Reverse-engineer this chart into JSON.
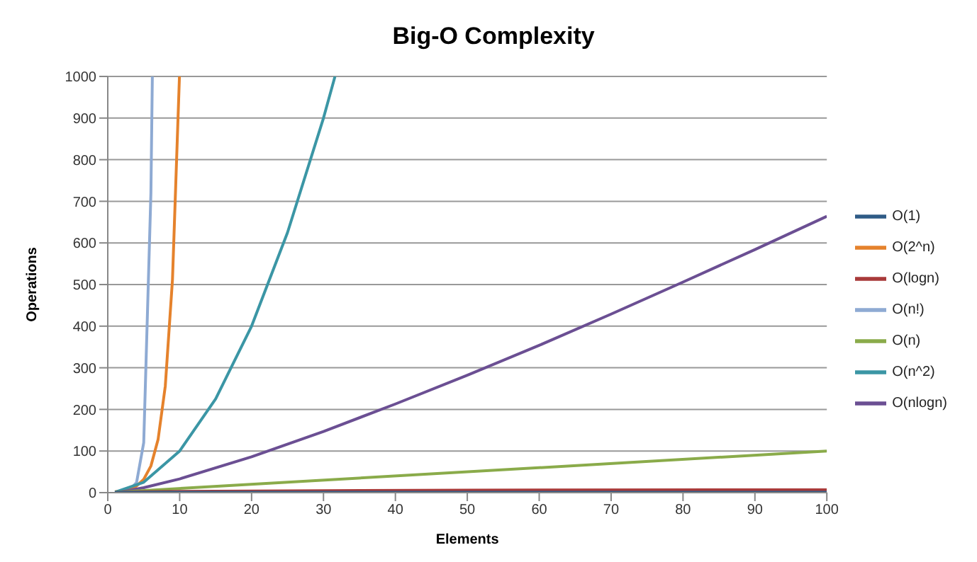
{
  "chart_data": {
    "type": "line",
    "title": "Big-O Complexity",
    "xlabel": "Elements",
    "ylabel": "Operations",
    "xlim": [
      0,
      100
    ],
    "xticks": [
      0,
      10,
      20,
      30,
      40,
      50,
      60,
      70,
      80,
      90,
      100
    ],
    "ylim": [
      0,
      1000
    ],
    "yticks": [
      0,
      100,
      200,
      300,
      400,
      500,
      600,
      700,
      800,
      900,
      1000
    ],
    "grid": "y",
    "legend": "right",
    "marker": "none",
    "line_style": "solid",
    "series": [
      {
        "name": "O(1)",
        "color": "#2f5b86",
        "x": [
          1,
          100
        ],
        "values": [
          1,
          1
        ]
      },
      {
        "name": "O(logn)",
        "color": "#a83a3a",
        "x": [
          1,
          2,
          5,
          10,
          20,
          50,
          100
        ],
        "values": [
          0,
          1,
          2,
          3,
          4,
          6,
          7
        ]
      },
      {
        "name": "O(n)",
        "color": "#8aab4a",
        "x": [
          1,
          100
        ],
        "values": [
          1,
          100
        ]
      },
      {
        "name": "O(nlogn)",
        "color": "#6b4f93",
        "x": [
          1,
          2,
          5,
          10,
          20,
          30,
          40,
          50,
          60,
          70,
          80,
          90,
          100
        ],
        "values": [
          0,
          2,
          12,
          33,
          86,
          147,
          213,
          282,
          354,
          429,
          506,
          584,
          664
        ]
      },
      {
        "name": "O(n^2)",
        "color": "#3b96a5",
        "x": [
          1,
          5,
          10,
          15,
          20,
          25,
          30,
          31.6
        ],
        "values": [
          1,
          25,
          100,
          225,
          400,
          625,
          900,
          1000
        ]
      },
      {
        "name": "O(2^n)",
        "color": "#e5822c",
        "x": [
          1,
          2,
          3,
          4,
          5,
          6,
          7,
          8,
          9,
          9.97
        ],
        "values": [
          2,
          4,
          8,
          16,
          32,
          64,
          128,
          256,
          512,
          1000
        ]
      },
      {
        "name": "O(n!)",
        "color": "#8eaad3",
        "x": [
          1,
          2,
          3,
          4,
          5,
          6,
          6.2
        ],
        "values": [
          1,
          2,
          6,
          24,
          120,
          720,
          1000
        ]
      }
    ]
  }
}
